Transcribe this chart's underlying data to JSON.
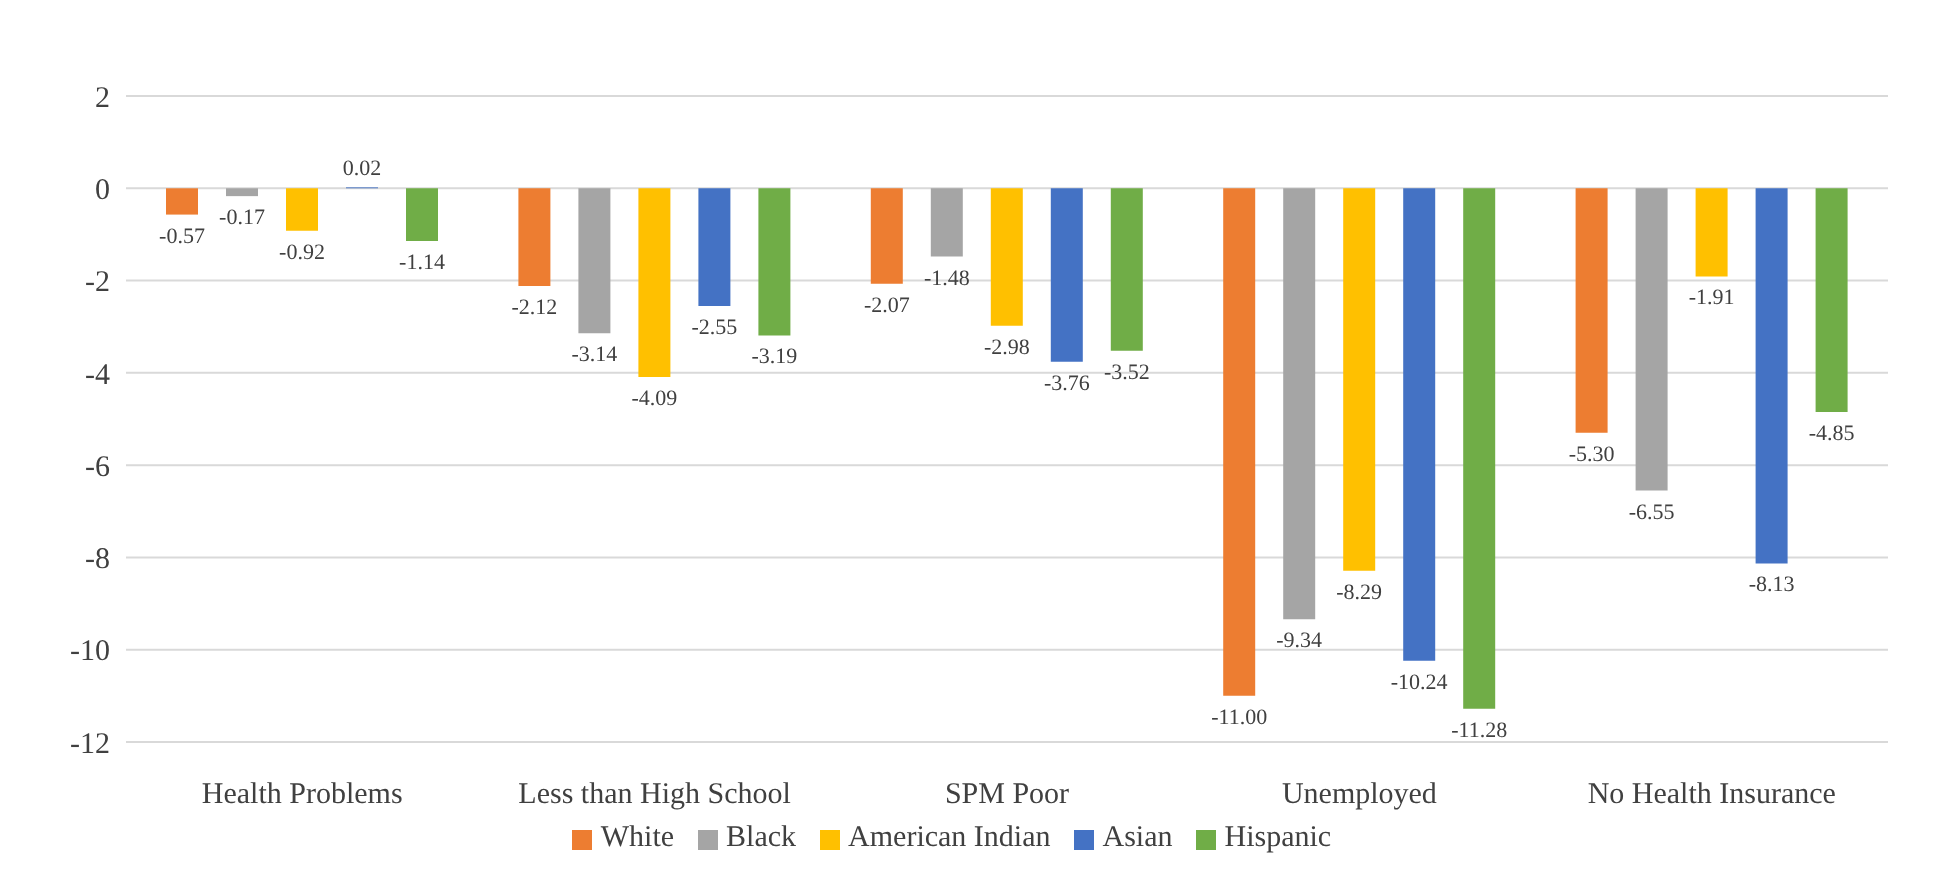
{
  "chart_data": {
    "type": "bar",
    "categories": [
      "Health Problems",
      "Less than High School",
      "SPM Poor",
      "Unemployed",
      "No Health Insurance"
    ],
    "series": [
      {
        "name": "White",
        "color": "#ed7d31",
        "values": [
          -0.57,
          -2.12,
          -2.07,
          -11.0,
          -5.3
        ],
        "value_labels": [
          "-0.57",
          "-2.12",
          "-2.07",
          "-11.00",
          "-5.30"
        ]
      },
      {
        "name": "Black",
        "color": "#a5a5a5",
        "values": [
          -0.17,
          -3.14,
          -1.48,
          -9.34,
          -6.55
        ],
        "value_labels": [
          "-0.17",
          "-3.14",
          "-1.48",
          "-9.34",
          "-6.55"
        ]
      },
      {
        "name": "American Indian",
        "color": "#ffc000",
        "values": [
          -0.92,
          -4.09,
          -2.98,
          -8.29,
          -1.91
        ],
        "value_labels": [
          "-0.92",
          "-4.09",
          "-2.98",
          "-8.29",
          "-1.91"
        ]
      },
      {
        "name": "Asian",
        "color": "#4472c4",
        "values": [
          0.02,
          -2.55,
          -3.76,
          -10.24,
          -8.13
        ],
        "value_labels": [
          "0.02",
          "-2.55",
          "-3.76",
          "-10.24",
          "-8.13"
        ]
      },
      {
        "name": "Hispanic",
        "color": "#70ad47",
        "values": [
          -1.14,
          -3.19,
          -3.52,
          -11.28,
          -4.85
        ],
        "value_labels": [
          "-1.14",
          "-3.19",
          "-3.52",
          "-11.28",
          "-4.85"
        ]
      }
    ],
    "ylim": [
      -12,
      2
    ],
    "yticks": [
      -12,
      -10,
      -8,
      -6,
      -4,
      -2,
      0,
      2
    ],
    "grid": "y",
    "legend": "bottom"
  }
}
